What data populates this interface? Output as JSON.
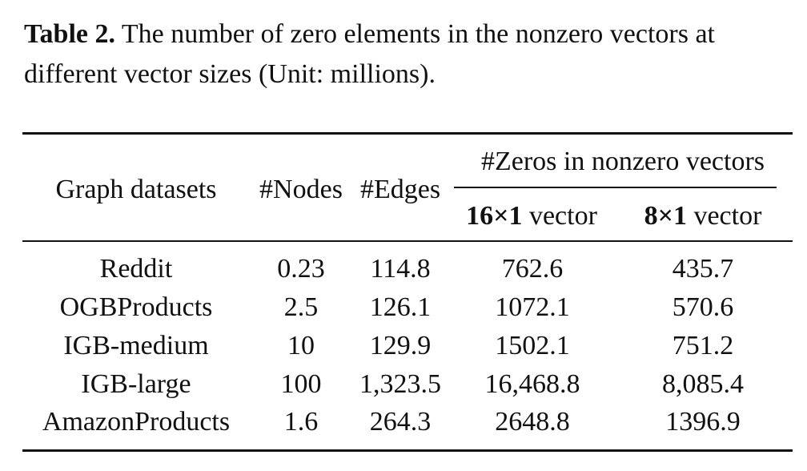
{
  "caption": {
    "label": "Table 2.",
    "text": " The number of zero elements in the nonzero vectors at different vector sizes (Unit: millions)."
  },
  "table": {
    "headers": {
      "graph": "Graph datasets",
      "nodes": "#Nodes",
      "edges": "#Edges",
      "zeros_group": "#Zeros in nonzero vectors",
      "v16_bold": "16×1",
      "v16_rest": " vector",
      "v8_bold": "8×1",
      "v8_rest": " vector"
    },
    "rows": [
      {
        "name": "Reddit",
        "nodes": "0.23",
        "edges": "114.8",
        "v16": "762.6",
        "v8": "435.7"
      },
      {
        "name": "OGBProducts",
        "nodes": "2.5",
        "edges": "126.1",
        "v16": "1072.1",
        "v8": "570.6"
      },
      {
        "name": "IGB-medium",
        "nodes": "10",
        "edges": "129.9",
        "v16": "1502.1",
        "v8": "751.2"
      },
      {
        "name": "IGB-large",
        "nodes": "100",
        "edges": "1,323.5",
        "v16": "16,468.8",
        "v8": "8,085.4"
      },
      {
        "name": "AmazonProducts",
        "nodes": "1.6",
        "edges": "264.3",
        "v16": "2648.8",
        "v8": "1396.9"
      }
    ]
  }
}
